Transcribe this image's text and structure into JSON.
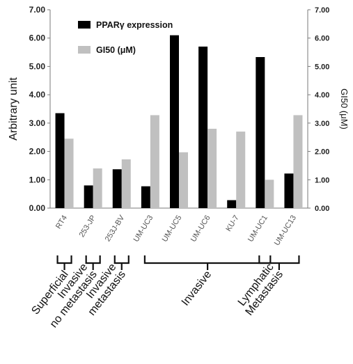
{
  "chart_data": {
    "type": "bar",
    "ylabel": "Arbitrary unit",
    "y2label": "GI50 (μM)",
    "ylim": [
      0,
      7
    ],
    "y2lim": [
      0,
      7
    ],
    "y_ticks": [
      "0.00",
      "1.00",
      "2.00",
      "3.00",
      "4.00",
      "5.00",
      "6.00",
      "7.00"
    ],
    "y2_ticks": [
      "0.00",
      "1.00",
      "2.00",
      "3.00",
      "4.00",
      "5.00",
      "6.00",
      "7.00"
    ],
    "grid": false,
    "legend_position": "top-left",
    "categories": [
      "RT4",
      "253-JP",
      "253J-BV",
      "UM-UC3",
      "UM-UC5",
      "UM-UC6",
      "KU-7",
      "UM-UC1",
      "UM-UC13"
    ],
    "series": [
      {
        "name": "PPARγ expression",
        "color": "#000000",
        "axis": "left",
        "values": [
          3.35,
          0.8,
          1.37,
          0.77,
          6.1,
          5.7,
          0.28,
          5.33,
          1.22
        ]
      },
      {
        "name": "GI50 (μM)",
        "color": "#c0c0c0",
        "axis": "right",
        "values": [
          2.45,
          1.4,
          1.72,
          3.28,
          1.97,
          2.8,
          2.7,
          1.0,
          3.28
        ]
      }
    ],
    "groups": [
      {
        "label_lines": [
          "Superficial"
        ],
        "from": 0,
        "to": 0
      },
      {
        "label_lines": [
          "Invasive",
          "no metastasis"
        ],
        "from": 1,
        "to": 1
      },
      {
        "label_lines": [
          "Invasive",
          "metastasis"
        ],
        "from": 2,
        "to": 2
      },
      {
        "label_lines": [
          "Invasive"
        ],
        "from": 3,
        "to": 7
      },
      {
        "label_lines": [
          "Lymphatic",
          "Metastasis"
        ],
        "from": 7,
        "to": 8
      }
    ]
  }
}
